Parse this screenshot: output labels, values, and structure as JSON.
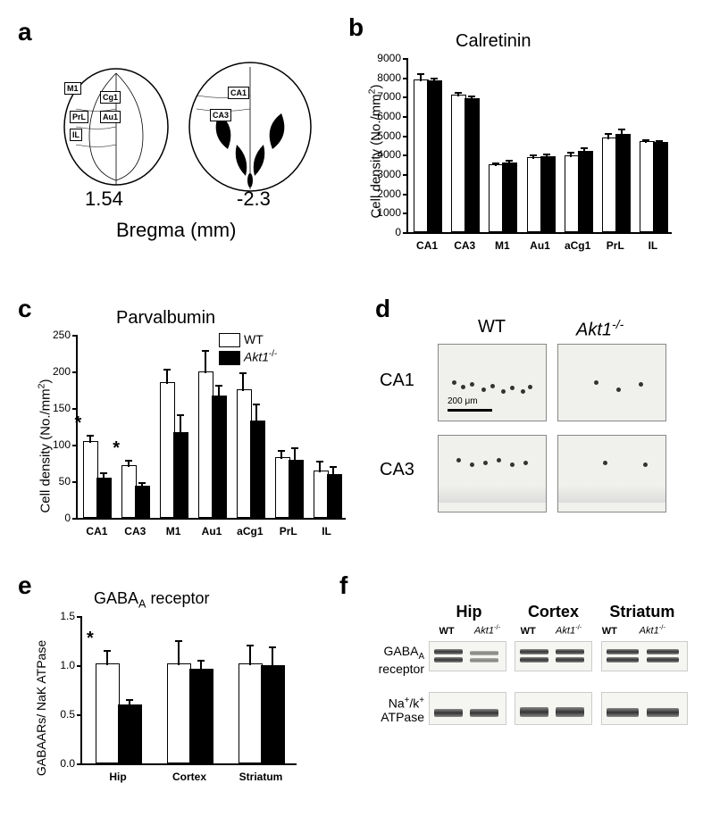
{
  "panelA": {
    "label": "a",
    "bregma_label": "Bregma (mm)",
    "left_value": "1.54",
    "right_value": "-2.3",
    "regions_left": [
      "M1",
      "Cg1",
      "PrL",
      "Au1",
      "IL"
    ],
    "regions_right": [
      "CA1",
      "CA3"
    ]
  },
  "panelB": {
    "label": "b",
    "title": "Calretinin",
    "y_label": "Cell density (No./mm²)",
    "y_max": 9000,
    "y_tick_step": 1000,
    "categories": [
      "CA1",
      "CA3",
      "M1",
      "Au1",
      "aCg1",
      "PrL",
      "IL"
    ],
    "wt_values": [
      7800,
      7000,
      3400,
      3800,
      3900,
      4800,
      4600
    ],
    "akt_values": [
      7750,
      6850,
      3500,
      3850,
      4100,
      5000,
      4550
    ],
    "wt_errors": [
      350,
      200,
      150,
      150,
      200,
      300,
      150
    ],
    "akt_errors": [
      200,
      150,
      180,
      150,
      250,
      300,
      150
    ],
    "bar_colors": {
      "wt": "#ffffff",
      "akt": "#000000"
    }
  },
  "panelC": {
    "label": "c",
    "title": "Parvalbumin",
    "y_label": "Cell density (No./mm²)",
    "y_max": 250,
    "y_tick_step": 50,
    "categories": [
      "CA1",
      "CA3",
      "M1",
      "Au1",
      "aCg1",
      "PrL",
      "IL"
    ],
    "wt_values": [
      102,
      70,
      183,
      198,
      173,
      80,
      62
    ],
    "akt_values": [
      53,
      42,
      115,
      165,
      130,
      77,
      57
    ],
    "wt_errors": [
      10,
      8,
      20,
      30,
      25,
      12,
      15
    ],
    "akt_errors": [
      8,
      5,
      25,
      15,
      25,
      18,
      12
    ],
    "significance": {
      "CA1": "*",
      "CA3": "*"
    },
    "legend": {
      "wt": "WT",
      "akt": "Akt1⁻/⁻"
    }
  },
  "panelD": {
    "label": "d",
    "col_headers": [
      "WT",
      "Akt1⁻/⁻"
    ],
    "row_headers": [
      "CA1",
      "CA3"
    ],
    "scale_bar_text": "200 μm"
  },
  "panelE": {
    "label": "e",
    "title": "GABAₐ receptor",
    "y_label": "GABAARs/ NaK ATPase",
    "y_max": 1.5,
    "y_tick_step": 0.5,
    "categories": [
      "Hip",
      "Cortex",
      "Striatum"
    ],
    "wt_values": [
      1.0,
      1.0,
      1.0
    ],
    "akt_values": [
      0.58,
      0.95,
      0.98
    ],
    "wt_errors": [
      0.15,
      0.25,
      0.2
    ],
    "akt_errors": [
      0.07,
      0.1,
      0.2
    ],
    "significance": {
      "Hip": "*"
    }
  },
  "panelF": {
    "label": "f",
    "tissues": [
      "Hip",
      "Cortex",
      "Striatum"
    ],
    "lanes": [
      "WT",
      "Akt1⁻/⁻"
    ],
    "rows": [
      "GABAₐ receptor",
      "Na⁺/k⁺ ATPase"
    ]
  }
}
